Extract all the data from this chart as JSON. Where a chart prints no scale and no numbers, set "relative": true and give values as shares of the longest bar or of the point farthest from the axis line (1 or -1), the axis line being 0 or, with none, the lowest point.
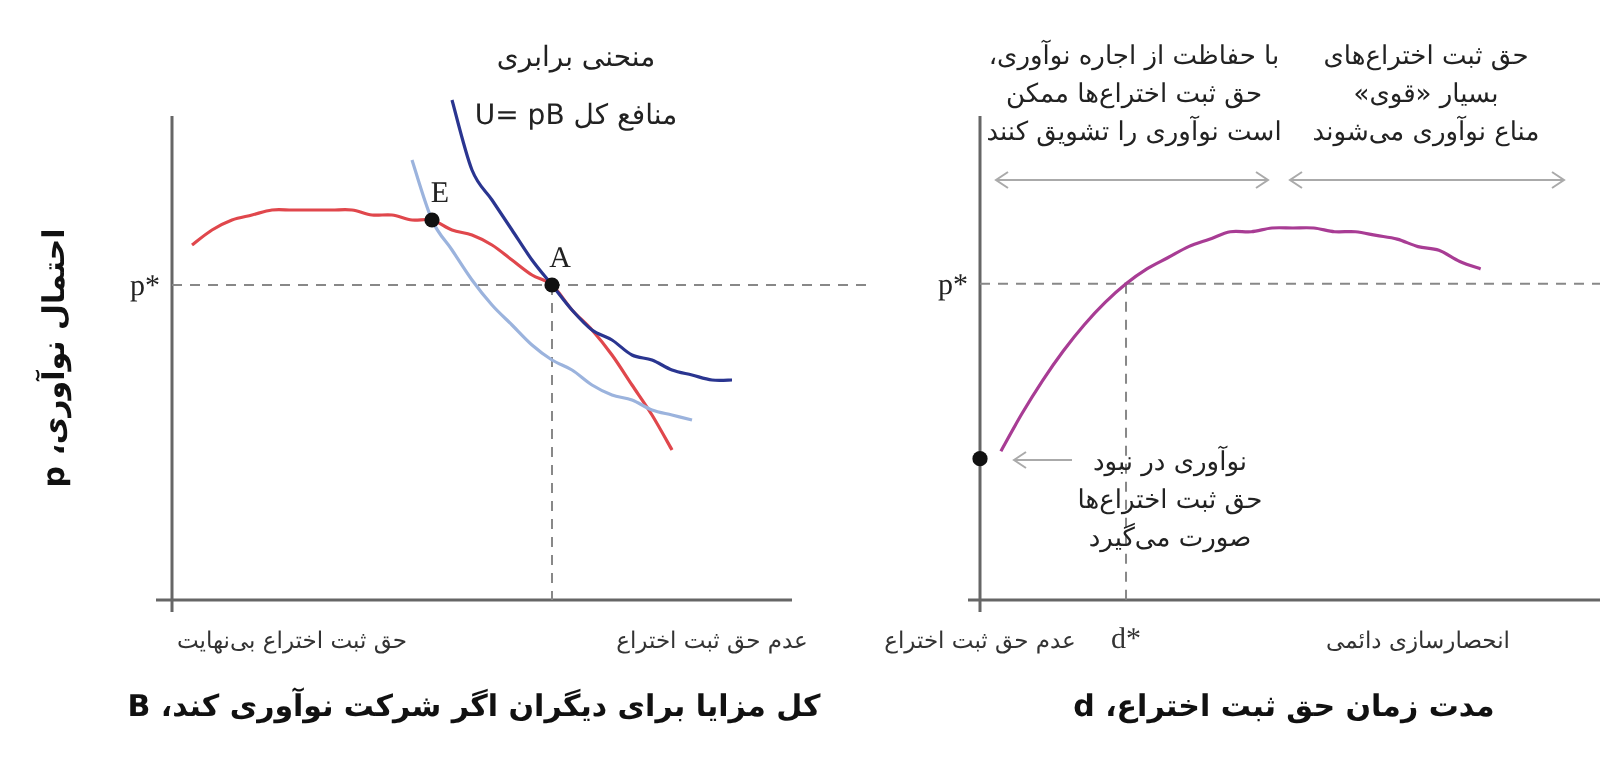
{
  "chart_data": [
    {
      "type": "line",
      "relative": true,
      "xlabel": "کل مزایا برای دیگران اگر شرکت نوآوری کند، B",
      "ylabel": "احتمال نوآوری، p",
      "categories": [
        null,
        null,
        null,
        null,
        null,
        null,
        "حق ثبت اختراع بی‌نهایت",
        null,
        null,
        null,
        null,
        null,
        null,
        null,
        null,
        null,
        null,
        null,
        null,
        null,
        null,
        null,
        null,
        null,
        null,
        null,
        null,
        "عدم حق ثبت اختراع",
        null,
        null,
        null,
        null
      ],
      "series": [
        {
          "color": "#e0474c",
          "values": [
            null,
            0.71,
            0.74,
            0.76,
            0.77,
            0.78,
            0.78,
            0.78,
            0.78,
            0.78,
            0.77,
            0.77,
            0.76,
            0.76,
            0.74,
            0.73,
            0.71,
            0.68,
            0.65,
            0.63,
            0.58,
            0.54,
            0.49,
            0.43,
            0.37,
            0.3,
            null,
            null,
            null,
            null,
            null,
            null
          ]
        },
        {
          "color": "#9bb3dd",
          "values": [
            null,
            null,
            null,
            null,
            null,
            null,
            null,
            null,
            null,
            null,
            null,
            null,
            0.88,
            0.76,
            0.7,
            0.64,
            0.59,
            0.55,
            0.51,
            0.48,
            0.46,
            0.43,
            0.41,
            0.4,
            0.38,
            0.37,
            0.36,
            null,
            null,
            null,
            null,
            null
          ]
        },
        {
          "name": "منحنی برابری\nمنافع کل U= pB",
          "color": "#2a3590",
          "values": [
            null,
            null,
            null,
            null,
            null,
            null,
            null,
            null,
            null,
            null,
            null,
            null,
            null,
            null,
            1.0,
            0.86,
            0.8,
            0.74,
            0.68,
            0.63,
            0.58,
            0.54,
            0.52,
            0.49,
            0.48,
            0.46,
            0.45,
            0.44,
            0.44,
            null,
            null,
            null
          ]
        },
        {
          "type": "scatter",
          "marker": "circle",
          "name": "E",
          "color": "#111111",
          "values": [
            null,
            null,
            null,
            null,
            null,
            null,
            null,
            null,
            null,
            null,
            null,
            null,
            null,
            0.76,
            null,
            null,
            null,
            null,
            null,
            null,
            null,
            null,
            null,
            null,
            null,
            null,
            null,
            null,
            null,
            null,
            null,
            null
          ]
        },
        {
          "type": "scatter",
          "marker": "circle",
          "name": "A",
          "color": "#111111",
          "values": [
            null,
            null,
            null,
            null,
            null,
            null,
            null,
            null,
            null,
            null,
            null,
            null,
            null,
            null,
            null,
            null,
            null,
            null,
            null,
            0.63,
            null,
            null,
            null,
            null,
            null,
            null,
            null,
            null,
            null,
            null,
            null,
            null
          ]
        }
      ],
      "ref_lines": [
        {
          "axis": "y",
          "value": 0.63,
          "label": "p*",
          "color": "#888888",
          "line_style": "dashed"
        }
      ]
    },
    {
      "type": "line",
      "relative": true,
      "xlabel": "مدت زمان حق ثبت اختراع، d",
      "categories": [
        "عدم حق ثبت اختراع",
        null,
        null,
        null,
        null,
        null,
        null,
        "d*",
        null,
        null,
        null,
        null,
        null,
        null,
        null,
        null,
        null,
        null,
        null,
        null,
        null,
        "انحصارسازی دائمی",
        null,
        null,
        null,
        null,
        null,
        null,
        null,
        null,
        null
      ],
      "series": [
        {
          "color": "#a83c94",
          "values": [
            null,
            0.4,
            0.5,
            0.59,
            0.67,
            0.74,
            0.8,
            0.85,
            0.89,
            0.92,
            0.95,
            0.97,
            0.99,
            0.99,
            1,
            1,
            1,
            0.99,
            0.99,
            0.98,
            0.97,
            0.95,
            0.94,
            0.91,
            0.89,
            null,
            null,
            null,
            null,
            null,
            null
          ]
        },
        {
          "type": "scatter",
          "marker": "circle",
          "color": "#111111",
          "values": [
            0.38,
            null,
            null,
            null,
            null,
            null,
            null,
            null,
            null,
            null,
            null,
            null,
            null,
            null,
            null,
            null,
            null,
            null,
            null,
            null,
            null,
            null,
            null,
            null,
            null,
            null,
            null,
            null,
            null,
            null,
            null
          ]
        }
      ],
      "ref_lines": [
        {
          "axis": "y",
          "value": 0.85,
          "label": "p*",
          "color": "#888888",
          "line_style": "dashed"
        },
        {
          "axis": "x",
          "value": "d*",
          "color": "#888888",
          "line_style": "dashed"
        }
      ],
      "annotations": [
        "با حفاظت از اجاره نوآوری،\nحق ثبت اختراع‌ها ممکن\nاست نوآوری را تشویق کنند",
        "حق ثبت اختراع‌های\nبسیار «قوی»\nمناع نوآوری می‌شوند",
        "نوآوری در نبود\nحق ثبت اختراع‌ها\nصورت می‌گیرد"
      ]
    }
  ]
}
